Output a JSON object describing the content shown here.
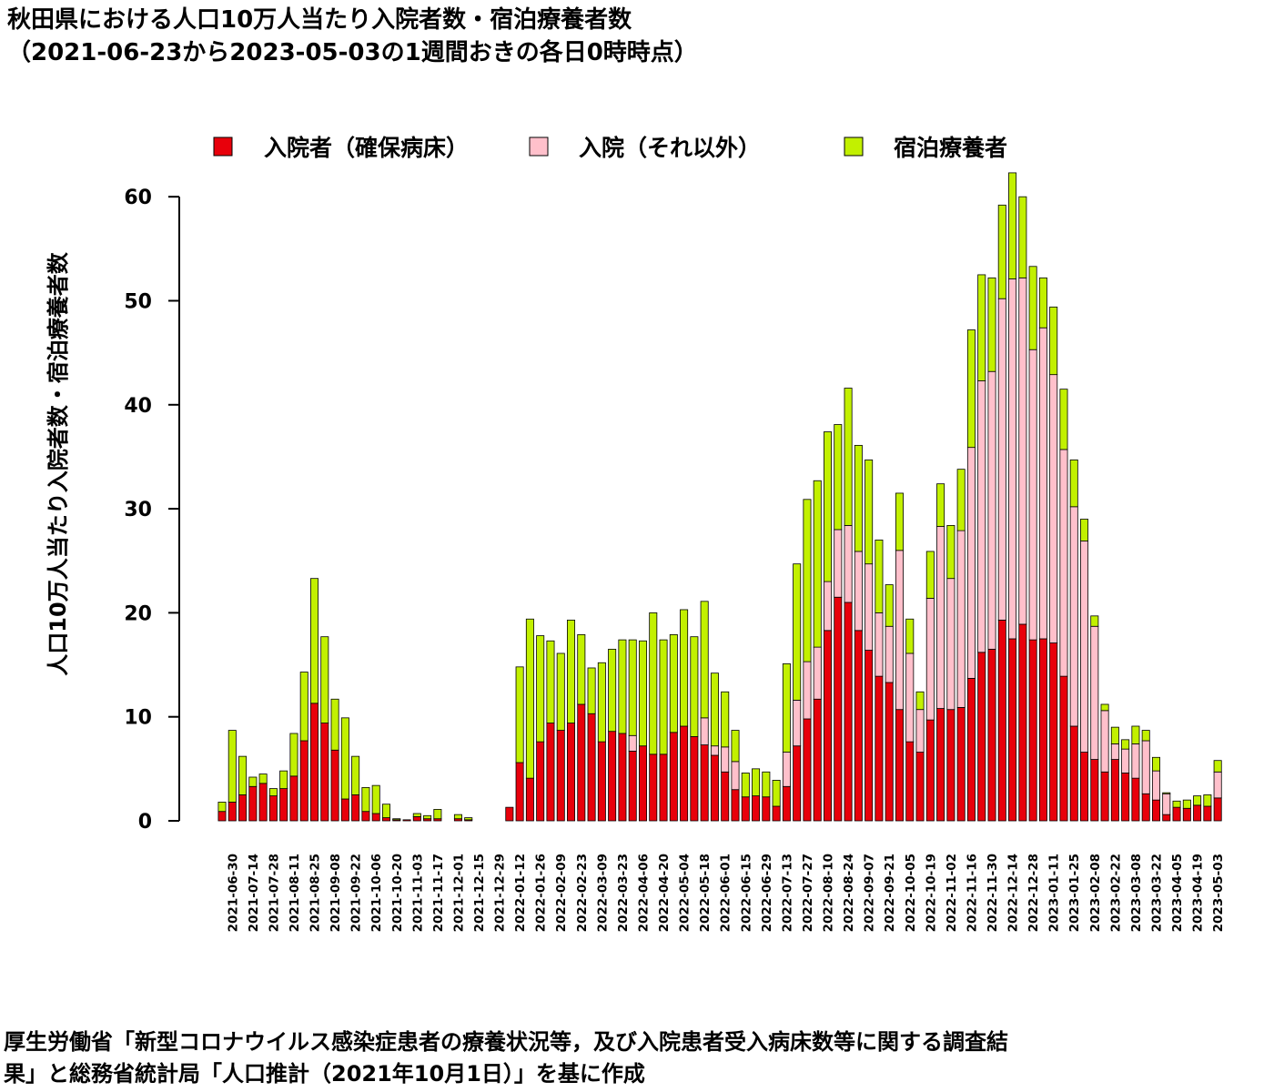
{
  "page": {
    "title_line1": "秋田県における人口10万人当たり入院者数・宿泊療養者数",
    "title_line2": "（2021-06-23から2023-05-03の1週間おきの各日0時時点）",
    "footer_line1": "厚生労働省「新型コロナウイルス感染症患者の療養状況等，及び入院患者受入病床数等に関する調査結",
    "footer_line2": "果」と総務省統計局「人口推計（2021年10月1日）」を基に作成"
  },
  "colors": {
    "hospitalized_secured": "#e8000b",
    "hospitalized_other": "#ffc0cb",
    "hotel": "#c2f000",
    "stroke": "#000000"
  },
  "chart_data": {
    "type": "bar",
    "stacked": true,
    "title": "秋田県における人口10万人当たり入院者数・宿泊療養者数",
    "subtitle": "（2021-06-23から2023-05-03の1週間おきの各日0時時点）",
    "ylabel": "人口10万人当たり入院者数・宿泊療養者数",
    "xlabel": "",
    "ylim": [
      0,
      62
    ],
    "yticks": [
      0,
      10,
      20,
      30,
      40,
      50,
      60
    ],
    "legend_position": "top",
    "x": [
      "2021-06-23",
      "2021-06-30",
      "2021-07-07",
      "2021-07-14",
      "2021-07-21",
      "2021-07-28",
      "2021-08-04",
      "2021-08-11",
      "2021-08-18",
      "2021-08-25",
      "2021-09-01",
      "2021-09-08",
      "2021-09-15",
      "2021-09-22",
      "2021-09-29",
      "2021-10-06",
      "2021-10-13",
      "2021-10-20",
      "2021-10-27",
      "2021-11-03",
      "2021-11-10",
      "2021-11-17",
      "2021-11-24",
      "2021-12-01",
      "2021-12-08",
      "2021-12-15",
      "2021-12-22",
      "2021-12-29",
      "2022-01-05",
      "2022-01-12",
      "2022-01-19",
      "2022-01-26",
      "2022-02-02",
      "2022-02-09",
      "2022-02-16",
      "2022-02-23",
      "2022-03-02",
      "2022-03-09",
      "2022-03-16",
      "2022-03-23",
      "2022-03-30",
      "2022-04-06",
      "2022-04-13",
      "2022-04-20",
      "2022-04-27",
      "2022-05-04",
      "2022-05-11",
      "2022-05-18",
      "2022-05-25",
      "2022-06-01",
      "2022-06-08",
      "2022-06-15",
      "2022-06-22",
      "2022-06-29",
      "2022-07-06",
      "2022-07-13",
      "2022-07-20",
      "2022-07-27",
      "2022-08-03",
      "2022-08-10",
      "2022-08-17",
      "2022-08-24",
      "2022-08-31",
      "2022-09-07",
      "2022-09-14",
      "2022-09-21",
      "2022-09-28",
      "2022-10-05",
      "2022-10-12",
      "2022-10-19",
      "2022-10-26",
      "2022-11-02",
      "2022-11-09",
      "2022-11-16",
      "2022-11-23",
      "2022-11-30",
      "2022-12-07",
      "2022-12-14",
      "2022-12-21",
      "2022-12-28",
      "2023-01-04",
      "2023-01-11",
      "2023-01-18",
      "2023-01-25",
      "2023-02-01",
      "2023-02-08",
      "2023-02-15",
      "2023-02-22",
      "2023-03-01",
      "2023-03-08",
      "2023-03-15",
      "2023-03-22",
      "2023-03-29",
      "2023-04-05",
      "2023-04-12",
      "2023-04-19",
      "2023-04-26",
      "2023-05-03"
    ],
    "xtick_labels": [
      "2021-06-30",
      "2021-07-14",
      "2021-07-28",
      "2021-08-11",
      "2021-08-25",
      "2021-09-08",
      "2021-09-22",
      "2021-10-06",
      "2021-10-20",
      "2021-11-03",
      "2021-11-17",
      "2021-12-01",
      "2021-12-15",
      "2021-12-29",
      "2022-01-12",
      "2022-01-26",
      "2022-02-09",
      "2022-02-23",
      "2022-03-09",
      "2022-03-23",
      "2022-04-06",
      "2022-04-20",
      "2022-05-04",
      "2022-05-18",
      "2022-06-01",
      "2022-06-15",
      "2022-06-29",
      "2022-07-13",
      "2022-07-27",
      "2022-08-10",
      "2022-08-24",
      "2022-09-07",
      "2022-09-21",
      "2022-10-05",
      "2022-10-19",
      "2022-11-02",
      "2022-11-16",
      "2022-11-30",
      "2022-12-14",
      "2022-12-28",
      "2023-01-11",
      "2023-01-25",
      "2023-02-08",
      "2023-02-22",
      "2023-03-08",
      "2023-03-22",
      "2023-04-05",
      "2023-04-19",
      "2023-05-03"
    ],
    "series": [
      {
        "name": "入院者（確保病床）",
        "values": [
          0.9,
          1.8,
          2.5,
          3.3,
          3.6,
          2.4,
          3.1,
          4.3,
          7.7,
          11.3,
          9.4,
          6.8,
          2.1,
          2.5,
          0.9,
          0.7,
          0.3,
          0.1,
          0.1,
          0.4,
          0.2,
          0.2,
          0,
          0.2,
          0.1,
          0,
          0,
          0,
          1.3,
          5.6,
          4.1,
          7.6,
          9.4,
          8.7,
          9.4,
          11.2,
          10.3,
          7.6,
          8.6,
          8.4,
          6.7,
          7.2,
          6.4,
          6.4,
          8.5,
          9.1,
          8.1,
          7.3,
          6.3,
          4.7,
          3.0,
          2.3,
          2.4,
          2.3,
          1.4,
          3.3,
          7.2,
          9.8,
          11.7,
          18.3,
          21.5,
          21.0,
          18.3,
          16.4,
          13.9,
          13.3,
          10.7,
          7.6,
          6.6,
          9.7,
          10.8,
          10.7,
          10.9,
          13.7,
          16.2,
          16.5,
          19.3,
          17.5,
          18.9,
          17.4,
          17.5,
          17.1,
          13.9,
          9.1,
          6.6,
          5.9,
          4.7,
          5.9,
          4.6,
          4.1,
          2.6,
          2.0,
          0.6,
          1.3,
          1.2,
          1.5,
          1.4,
          2.2
        ]
      },
      {
        "name": "入院（それ以外）",
        "values": [
          0,
          0,
          0,
          0,
          0,
          0,
          0,
          0,
          0,
          0,
          0,
          0,
          0,
          0,
          0,
          0,
          0,
          0,
          0,
          0,
          0,
          0,
          0,
          0,
          0,
          0,
          0,
          0,
          0,
          0,
          0,
          0,
          0,
          0,
          0,
          0,
          0,
          0,
          0,
          0,
          1.5,
          0,
          0,
          0,
          0,
          0,
          0,
          2.6,
          0.9,
          2.4,
          2.7,
          0,
          0,
          0,
          0,
          3.3,
          4.4,
          5.5,
          5.0,
          4.7,
          6.5,
          7.4,
          7.6,
          8.3,
          6.1,
          5.4,
          15.3,
          8.5,
          4.1,
          11.7,
          17.5,
          12.6,
          17.0,
          22.2,
          26.1,
          26.7,
          30.9,
          34.6,
          33.3,
          27.9,
          29.9,
          25.8,
          21.8,
          21.1,
          20.3,
          12.8,
          5.9,
          1.5,
          2.3,
          3.3,
          5.1,
          2.8,
          2.0,
          0,
          0,
          0,
          0,
          2.5
        ]
      },
      {
        "name": "宿泊療養者",
        "values": [
          0.9,
          6.9,
          3.7,
          0.9,
          0.9,
          0.7,
          1.7,
          4.1,
          6.6,
          12.0,
          8.3,
          4.9,
          7.8,
          3.7,
          2.3,
          2.7,
          1.3,
          0.1,
          0,
          0.3,
          0.3,
          0.9,
          0,
          0.4,
          0.2,
          0,
          0,
          0,
          0,
          9.2,
          15.3,
          10.2,
          7.9,
          7.4,
          9.9,
          6.7,
          4.4,
          7.6,
          7.9,
          9.0,
          9.2,
          10.1,
          13.6,
          11.0,
          9.4,
          11.2,
          9.6,
          11.2,
          7.0,
          5.3,
          3.0,
          2.3,
          2.6,
          2.4,
          2.5,
          8.5,
          13.1,
          15.6,
          16.0,
          14.4,
          10.1,
          13.2,
          10.2,
          10.0,
          7.0,
          4.0,
          5.5,
          3.3,
          1.7,
          4.5,
          4.1,
          5.1,
          5.9,
          11.3,
          10.2,
          9.0,
          9.0,
          10.2,
          7.8,
          8.0,
          4.8,
          6.5,
          5.8,
          4.5,
          2.1,
          1.0,
          0.6,
          1.6,
          0.9,
          1.7,
          1.0,
          1.3,
          0.1,
          0.6,
          0.8,
          0.9,
          1.1,
          1.1
        ]
      }
    ]
  }
}
